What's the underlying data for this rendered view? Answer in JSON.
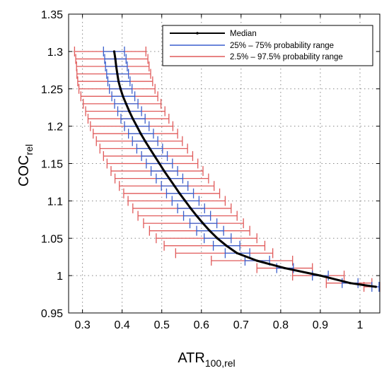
{
  "chart_data": {
    "type": "line",
    "xlabel": "ATR",
    "xlabel_sub": "100,rel",
    "ylabel": "COC",
    "ylabel_sub": "rel",
    "xlim": [
      0.265,
      1.05
    ],
    "ylim": [
      0.95,
      1.35
    ],
    "xticks": [
      0.3,
      0.4,
      0.5,
      0.6,
      0.7,
      0.8,
      0.9,
      1
    ],
    "xtick_labels": [
      "0.3",
      "0.4",
      "0.5",
      "0.6",
      "0.7",
      "0.8",
      "0.9",
      "1"
    ],
    "yticks": [
      0.95,
      1.0,
      1.05,
      1.1,
      1.15,
      1.2,
      1.25,
      1.3,
      1.35
    ],
    "ytick_labels": [
      "0.95",
      "1",
      "1.05",
      "1.1",
      "1.15",
      "1.2",
      "1.25",
      "1.3",
      "1.35"
    ],
    "grid": true,
    "legend_position": "top-right",
    "series": [
      {
        "name": "Median",
        "color": "#000000"
      },
      {
        "name": "25% – 75% probability range",
        "color": "#3a5fcd"
      },
      {
        "name": "2.5% – 97.5% probability range",
        "color": "#e05a5a"
      }
    ],
    "points": [
      {
        "y": 1.3,
        "median": 0.38,
        "p25": 0.353,
        "p75": 0.406,
        "p2_5": 0.28,
        "p97_5": 0.46
      },
      {
        "y": 1.29,
        "median": 0.383,
        "p25": 0.356,
        "p75": 0.41,
        "p2_5": 0.283,
        "p97_5": 0.465
      },
      {
        "y": 1.28,
        "median": 0.385,
        "p25": 0.358,
        "p75": 0.413,
        "p2_5": 0.285,
        "p97_5": 0.468
      },
      {
        "y": 1.27,
        "median": 0.388,
        "p25": 0.361,
        "p75": 0.416,
        "p2_5": 0.286,
        "p97_5": 0.472
      },
      {
        "y": 1.26,
        "median": 0.391,
        "p25": 0.364,
        "p75": 0.42,
        "p2_5": 0.288,
        "p97_5": 0.477
      },
      {
        "y": 1.25,
        "median": 0.396,
        "p25": 0.368,
        "p75": 0.425,
        "p2_5": 0.291,
        "p97_5": 0.483
      },
      {
        "y": 1.24,
        "median": 0.402,
        "p25": 0.374,
        "p75": 0.432,
        "p2_5": 0.296,
        "p97_5": 0.49
      },
      {
        "y": 1.23,
        "median": 0.41,
        "p25": 0.381,
        "p75": 0.44,
        "p2_5": 0.302,
        "p97_5": 0.498
      },
      {
        "y": 1.22,
        "median": 0.418,
        "p25": 0.389,
        "p75": 0.449,
        "p2_5": 0.308,
        "p97_5": 0.508
      },
      {
        "y": 1.21,
        "median": 0.427,
        "p25": 0.397,
        "p75": 0.458,
        "p2_5": 0.314,
        "p97_5": 0.518
      },
      {
        "y": 1.2,
        "median": 0.437,
        "p25": 0.406,
        "p75": 0.468,
        "p2_5": 0.32,
        "p97_5": 0.528
      },
      {
        "y": 1.19,
        "median": 0.447,
        "p25": 0.416,
        "p75": 0.479,
        "p2_5": 0.327,
        "p97_5": 0.54
      },
      {
        "y": 1.18,
        "median": 0.458,
        "p25": 0.426,
        "p75": 0.49,
        "p2_5": 0.335,
        "p97_5": 0.552
      },
      {
        "y": 1.17,
        "median": 0.47,
        "p25": 0.437,
        "p75": 0.502,
        "p2_5": 0.344,
        "p97_5": 0.565
      },
      {
        "y": 1.16,
        "median": 0.482,
        "p25": 0.449,
        "p75": 0.514,
        "p2_5": 0.353,
        "p97_5": 0.578
      },
      {
        "y": 1.15,
        "median": 0.494,
        "p25": 0.461,
        "p75": 0.527,
        "p2_5": 0.362,
        "p97_5": 0.591
      },
      {
        "y": 1.14,
        "median": 0.506,
        "p25": 0.473,
        "p75": 0.54,
        "p2_5": 0.372,
        "p97_5": 0.604
      },
      {
        "y": 1.13,
        "median": 0.519,
        "p25": 0.486,
        "p75": 0.553,
        "p2_5": 0.382,
        "p97_5": 0.618
      },
      {
        "y": 1.12,
        "median": 0.532,
        "p25": 0.499,
        "p75": 0.566,
        "p2_5": 0.393,
        "p97_5": 0.632
      },
      {
        "y": 1.11,
        "median": 0.545,
        "p25": 0.512,
        "p75": 0.58,
        "p2_5": 0.404,
        "p97_5": 0.646
      },
      {
        "y": 1.1,
        "median": 0.559,
        "p25": 0.526,
        "p75": 0.594,
        "p2_5": 0.415,
        "p97_5": 0.66
      },
      {
        "y": 1.09,
        "median": 0.573,
        "p25": 0.54,
        "p75": 0.608,
        "p2_5": 0.427,
        "p97_5": 0.675
      },
      {
        "y": 1.08,
        "median": 0.588,
        "p25": 0.555,
        "p75": 0.623,
        "p2_5": 0.44,
        "p97_5": 0.69
      },
      {
        "y": 1.07,
        "median": 0.604,
        "p25": 0.571,
        "p75": 0.639,
        "p2_5": 0.454,
        "p97_5": 0.706
      },
      {
        "y": 1.06,
        "median": 0.621,
        "p25": 0.588,
        "p75": 0.656,
        "p2_5": 0.469,
        "p97_5": 0.722
      },
      {
        "y": 1.05,
        "median": 0.64,
        "p25": 0.607,
        "p75": 0.675,
        "p2_5": 0.486,
        "p97_5": 0.74
      },
      {
        "y": 1.04,
        "median": 0.663,
        "p25": 0.63,
        "p75": 0.697,
        "p2_5": 0.506,
        "p97_5": 0.76
      },
      {
        "y": 1.03,
        "median": 0.69,
        "p25": 0.66,
        "p75": 0.722,
        "p2_5": 0.535,
        "p97_5": 0.78
      },
      {
        "y": 1.02,
        "median": 0.74,
        "p25": 0.71,
        "p75": 0.772,
        "p2_5": 0.625,
        "p97_5": 0.83
      },
      {
        "y": 1.01,
        "median": 0.81,
        "p25": 0.79,
        "p75": 0.832,
        "p2_5": 0.74,
        "p97_5": 0.88
      },
      {
        "y": 1.0,
        "median": 0.9,
        "p25": 0.88,
        "p75": 0.92,
        "p2_5": 0.83,
        "p97_5": 0.96
      },
      {
        "y": 0.99,
        "median": 0.975,
        "p25": 0.955,
        "p75": 0.995,
        "p2_5": 0.915,
        "p97_5": 1.03
      },
      {
        "y": 0.985,
        "median": 1.04,
        "p25": 1.03,
        "p75": 1.048,
        "p2_5": 1.01,
        "p97_5": 1.05
      }
    ]
  }
}
